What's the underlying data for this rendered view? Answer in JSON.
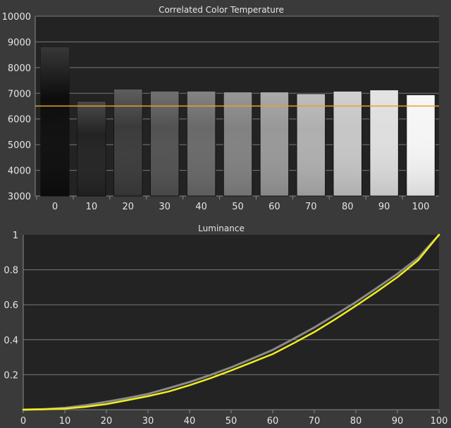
{
  "chart_data": [
    {
      "type": "bar",
      "title": "Correlated Color Temperature",
      "categories": [
        "0",
        "10",
        "20",
        "30",
        "40",
        "50",
        "60",
        "70",
        "80",
        "90",
        "100"
      ],
      "values": [
        8800,
        6680,
        7160,
        7080,
        7080,
        7050,
        7050,
        6980,
        7080,
        7130,
        6940
      ],
      "reference_line": 6504,
      "ylim": [
        3000,
        10000
      ],
      "yticks": [
        "3000",
        "4000",
        "5000",
        "6000",
        "7000",
        "8000",
        "9000",
        "10000"
      ],
      "grid": true,
      "colors": {
        "reference": "#e8a02a",
        "grid": "#7a7a7a",
        "plot_bg": "#232323"
      }
    },
    {
      "type": "line",
      "title": "Luminance",
      "x": [
        0,
        5,
        10,
        15,
        20,
        25,
        30,
        35,
        40,
        45,
        50,
        55,
        60,
        65,
        70,
        75,
        80,
        85,
        90,
        95,
        100
      ],
      "series": [
        {
          "color": "#8a8a8a",
          "values": [
            0,
            0.003,
            0.01,
            0.025,
            0.045,
            0.066,
            0.09,
            0.123,
            0.158,
            0.198,
            0.242,
            0.291,
            0.342,
            0.405,
            0.47,
            0.542,
            0.615,
            0.695,
            0.777,
            0.868,
            1.0
          ]
        },
        {
          "color": "#f2ee1c",
          "values": [
            0,
            0.002,
            0.006,
            0.016,
            0.032,
            0.054,
            0.077,
            0.104,
            0.14,
            0.18,
            0.224,
            0.271,
            0.318,
            0.38,
            0.444,
            0.517,
            0.594,
            0.674,
            0.758,
            0.855,
            1.0
          ]
        }
      ],
      "xlim": [
        0,
        100
      ],
      "ylim": [
        0,
        1
      ],
      "xticks": [
        "0",
        "10",
        "20",
        "30",
        "40",
        "50",
        "60",
        "70",
        "80",
        "90",
        "100"
      ],
      "yticks": [
        "0.2",
        "0.4",
        "0.6",
        "0.8",
        "1"
      ],
      "grid": true,
      "colors": {
        "grid": "#7a7a7a",
        "plot_bg": "#232323"
      }
    }
  ]
}
